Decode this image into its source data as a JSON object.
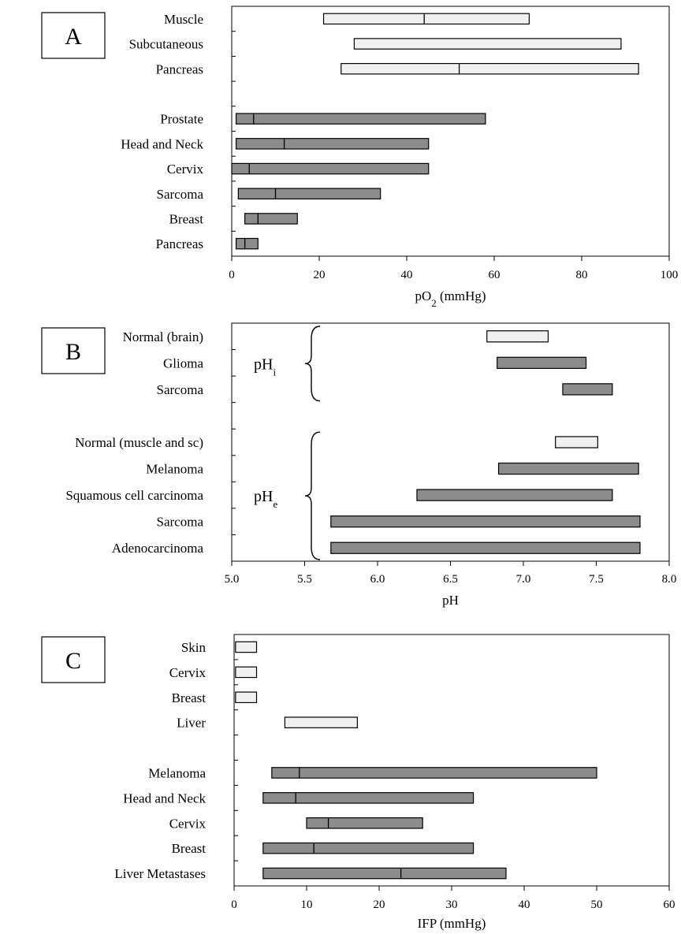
{
  "chart_data": [
    {
      "panel": "A",
      "type": "range-bar",
      "xlabel_main": "pO",
      "xlabel_sub": "2",
      "xlabel_unit": " (mmHg)",
      "xlim": [
        0,
        100
      ],
      "xticks": [
        "0",
        "20",
        "40",
        "60",
        "80",
        "100"
      ],
      "groups": [
        {
          "items": [
            {
              "label": "Muscle",
              "low": 21,
              "high": 68,
              "median": 44,
              "type": "normal"
            },
            {
              "label": "Subcutaneous",
              "low": 28,
              "high": 89,
              "median": null,
              "type": "normal"
            },
            {
              "label": "Pancreas",
              "low": 25,
              "high": 93,
              "median": 52,
              "type": "normal"
            }
          ]
        },
        {
          "items": [
            {
              "label": "Prostate",
              "low": 1,
              "high": 58,
              "median": 5,
              "type": "tumor"
            },
            {
              "label": "Head and Neck",
              "low": 1,
              "high": 45,
              "median": 12,
              "type": "tumor"
            },
            {
              "label": "Cervix",
              "low": 0,
              "high": 45,
              "median": 4,
              "type": "tumor"
            },
            {
              "label": "Sarcoma",
              "low": 1.5,
              "high": 34,
              "median": 10,
              "type": "tumor"
            },
            {
              "label": "Breast",
              "low": 3,
              "high": 15,
              "median": 6,
              "type": "tumor"
            },
            {
              "label": "Pancreas",
              "low": 1,
              "high": 6,
              "median": 3,
              "type": "tumor"
            }
          ]
        }
      ]
    },
    {
      "panel": "B",
      "type": "range-bar",
      "xlabel_main": "pH",
      "xlabel_sub": "",
      "xlabel_unit": "",
      "xlim": [
        5.0,
        8.0
      ],
      "xticks": [
        "5.0",
        "5.5",
        "6.0",
        "6.5",
        "7.0",
        "7.5",
        "8.0"
      ],
      "groups": [
        {
          "bracket_main": "pH",
          "bracket_sub": "i",
          "items": [
            {
              "label": "Normal (brain)",
              "low": 6.75,
              "high": 7.17,
              "median": null,
              "type": "normal"
            },
            {
              "label": "Glioma",
              "low": 6.82,
              "high": 7.43,
              "median": null,
              "type": "tumor"
            },
            {
              "label": "Sarcoma",
              "low": 7.27,
              "high": 7.61,
              "median": null,
              "type": "tumor"
            }
          ]
        },
        {
          "bracket_main": "pH",
          "bracket_sub": "e",
          "items": [
            {
              "label": "Normal (muscle and sc)",
              "low": 7.22,
              "high": 7.51,
              "median": null,
              "type": "normal"
            },
            {
              "label": "Melanoma",
              "low": 6.83,
              "high": 7.79,
              "median": null,
              "type": "tumor"
            },
            {
              "label": "Squamous cell carcinoma",
              "low": 6.27,
              "high": 7.61,
              "median": null,
              "type": "tumor"
            },
            {
              "label": "Sarcoma",
              "low": 5.68,
              "high": 7.8,
              "median": null,
              "type": "tumor"
            },
            {
              "label": "Adenocarcinoma",
              "low": 5.68,
              "high": 7.8,
              "median": null,
              "type": "tumor"
            }
          ]
        }
      ]
    },
    {
      "panel": "C",
      "type": "range-bar",
      "xlabel_main": "IFP (mmHg)",
      "xlabel_sub": "",
      "xlabel_unit": "",
      "xlim": [
        0,
        60
      ],
      "xticks": [
        "0",
        "10",
        "20",
        "30",
        "40",
        "50",
        "60"
      ],
      "groups": [
        {
          "items": [
            {
              "label": "Skin",
              "low": 0.2,
              "high": 3.1,
              "median": null,
              "type": "normal"
            },
            {
              "label": "Cervix",
              "low": 0.2,
              "high": 3.1,
              "median": null,
              "type": "normal"
            },
            {
              "label": "Breast",
              "low": 0.2,
              "high": 3.1,
              "median": null,
              "type": "normal"
            },
            {
              "label": "Liver",
              "low": 7,
              "high": 17,
              "median": null,
              "type": "normal"
            }
          ]
        },
        {
          "items": [
            {
              "label": "Melanoma",
              "low": 5.2,
              "high": 50,
              "median": 9,
              "type": "tumor"
            },
            {
              "label": "Head and Neck",
              "low": 4,
              "high": 33,
              "median": 8.5,
              "type": "tumor"
            },
            {
              "label": "Cervix",
              "low": 10,
              "high": 26,
              "median": 13,
              "type": "tumor"
            },
            {
              "label": "Breast",
              "low": 4,
              "high": 33,
              "median": 11,
              "type": "tumor"
            },
            {
              "label": "Liver Metastases",
              "low": 4,
              "high": 37.5,
              "median": 23,
              "type": "tumor"
            }
          ]
        }
      ]
    }
  ],
  "colors": {
    "normal_fill": "#f0f0f0",
    "tumor_fill": "#8c8c8c",
    "stroke": "#000000"
  }
}
